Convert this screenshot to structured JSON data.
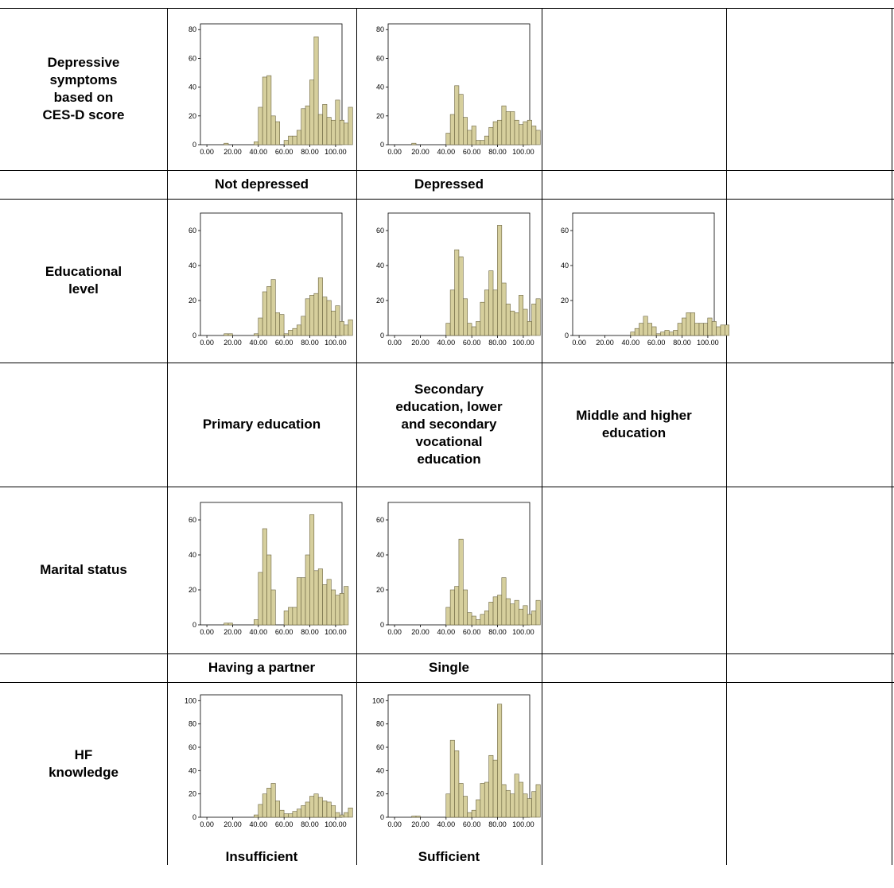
{
  "colors": {
    "bar_fill": "#d6cf9d",
    "bar_stroke": "#6b6440",
    "grid": "#000000"
  },
  "rows": [
    {
      "label": "Depressive\nsymptoms\nbased on\nCES-D score",
      "categories": [
        "Not depressed",
        "Depressed"
      ]
    },
    {
      "label": "Educational\nlevel",
      "categories": [
        "Primary education",
        "Secondary\neducation, lower\nand secondary\nvocational\neducation",
        "Middle and higher\neducation"
      ]
    },
    {
      "label": "Marital status",
      "categories": [
        "Having a partner",
        "Single"
      ]
    },
    {
      "label": "HF\nknowledge",
      "categories": [
        "Insufficient",
        "Sufficient"
      ]
    }
  ],
  "chart_data": [
    {
      "type": "bar",
      "name": "Not depressed",
      "x_ticks": [
        "0.00",
        "20.00",
        "40.00",
        "60.00",
        "80.00",
        "100.00"
      ],
      "xlim": [
        -5,
        105
      ],
      "ylim": [
        0,
        84
      ],
      "y_ticks": [
        0,
        20,
        40,
        60,
        80
      ],
      "bin_start": 0,
      "bin_width": 3.33,
      "values": [
        0,
        0,
        0,
        0,
        1,
        0,
        0,
        0,
        0,
        0,
        0,
        2,
        26,
        47,
        48,
        20,
        16,
        0,
        3,
        6,
        6,
        10,
        25,
        27,
        45,
        75,
        21,
        28,
        19,
        17,
        31,
        17,
        15,
        26
      ]
    },
    {
      "type": "bar",
      "name": "Depressed",
      "x_ticks": [
        "0.00",
        "20.00",
        "40.00",
        "60.00",
        "80.00",
        "100.00"
      ],
      "xlim": [
        -5,
        105
      ],
      "ylim": [
        0,
        84
      ],
      "y_ticks": [
        0,
        20,
        40,
        60,
        80
      ],
      "bin_start": 0,
      "bin_width": 3.33,
      "values": [
        0,
        0,
        0,
        0,
        1,
        0,
        0,
        0,
        0,
        0,
        0,
        0,
        8,
        21,
        41,
        35,
        19,
        10,
        13,
        3,
        3,
        6,
        12,
        16,
        17,
        27,
        23,
        23,
        17,
        14,
        16,
        17,
        13,
        10
      ]
    },
    {
      "type": "bar",
      "name": "Primary education",
      "x_ticks": [
        "0.00",
        "20.00",
        "40.00",
        "60.00",
        "80.00",
        "100.00"
      ],
      "xlim": [
        -5,
        105
      ],
      "ylim": [
        0,
        70
      ],
      "y_ticks": [
        0,
        20,
        40,
        60
      ],
      "bin_start": 0,
      "bin_width": 3.33,
      "values": [
        0,
        0,
        0,
        0,
        1,
        1,
        0,
        0,
        0,
        0,
        0,
        1,
        10,
        25,
        28,
        32,
        13,
        12,
        1,
        3,
        4,
        6,
        11,
        21,
        23,
        24,
        33,
        22,
        20,
        14,
        17,
        8,
        6,
        9
      ]
    },
    {
      "type": "bar",
      "name": "Secondary education, lower and secondary vocational education",
      "x_ticks": [
        "0.00",
        "20.00",
        "40.00",
        "60.00",
        "80.00",
        "100.00"
      ],
      "xlim": [
        -5,
        105
      ],
      "ylim": [
        0,
        70
      ],
      "y_ticks": [
        0,
        20,
        40,
        60
      ],
      "bin_start": 0,
      "bin_width": 3.33,
      "values": [
        0,
        0,
        0,
        0,
        0,
        0,
        0,
        0,
        0,
        0,
        0,
        0,
        7,
        26,
        49,
        45,
        21,
        7,
        5,
        8,
        19,
        26,
        37,
        26,
        63,
        30,
        18,
        14,
        13,
        23,
        15,
        8,
        18,
        21
      ]
    },
    {
      "type": "bar",
      "name": "Middle and higher education",
      "x_ticks": [
        "0.00",
        "20.00",
        "40.00",
        "60.00",
        "80.00",
        "100.00"
      ],
      "xlim": [
        -5,
        105
      ],
      "ylim": [
        0,
        70
      ],
      "y_ticks": [
        0,
        20,
        40,
        60
      ],
      "bin_start": 0,
      "bin_width": 3.33,
      "values": [
        0,
        0,
        0,
        0,
        0,
        0,
        0,
        0,
        0,
        0,
        0,
        0,
        2,
        4,
        7,
        11,
        7,
        5,
        1,
        2,
        3,
        2,
        3,
        7,
        10,
        13,
        13,
        7,
        7,
        7,
        10,
        8,
        5,
        6,
        6
      ]
    },
    {
      "type": "bar",
      "name": "Having a partner",
      "x_ticks": [
        "0.00",
        "20.00",
        "40.00",
        "60.00",
        "80.00",
        "100.00"
      ],
      "xlim": [
        -5,
        105
      ],
      "ylim": [
        0,
        70
      ],
      "y_ticks": [
        0,
        20,
        40,
        60
      ],
      "bin_start": 0,
      "bin_width": 3.33,
      "values": [
        0,
        0,
        0,
        0,
        1,
        1,
        0,
        0,
        0,
        0,
        0,
        3,
        30,
        55,
        40,
        20,
        0,
        0,
        8,
        10,
        10,
        27,
        27,
        40,
        63,
        31,
        32,
        23,
        26,
        20,
        17,
        18,
        22
      ]
    },
    {
      "type": "bar",
      "name": "Single",
      "x_ticks": [
        "0.00",
        "20.00",
        "40.00",
        "60.00",
        "80.00",
        "100.00"
      ],
      "xlim": [
        -5,
        105
      ],
      "ylim": [
        0,
        70
      ],
      "y_ticks": [
        0,
        20,
        40,
        60
      ],
      "bin_start": 0,
      "bin_width": 3.33,
      "values": [
        0,
        0,
        0,
        0,
        0,
        0,
        0,
        0,
        0,
        0,
        0,
        0,
        10,
        20,
        22,
        49,
        20,
        7,
        5,
        3,
        6,
        8,
        13,
        16,
        17,
        27,
        15,
        12,
        14,
        9,
        11,
        6,
        8,
        14
      ]
    },
    {
      "type": "bar",
      "name": "Insufficient",
      "x_ticks": [
        "0.00",
        "20.00",
        "40.00",
        "60.00",
        "80.00",
        "100.00"
      ],
      "xlim": [
        -5,
        105
      ],
      "ylim": [
        0,
        105
      ],
      "y_ticks": [
        0,
        20,
        40,
        60,
        80,
        100
      ],
      "bin_start": 0,
      "bin_width": 3.33,
      "values": [
        0,
        0,
        0,
        0,
        0,
        0,
        0,
        0,
        0,
        0,
        0,
        2,
        11,
        20,
        25,
        29,
        14,
        6,
        3,
        3,
        5,
        7,
        10,
        13,
        18,
        20,
        17,
        14,
        13,
        10,
        4,
        2,
        4,
        8
      ]
    },
    {
      "type": "bar",
      "name": "Sufficient",
      "x_ticks": [
        "0.00",
        "20.00",
        "40.00",
        "60.00",
        "80.00",
        "100.00"
      ],
      "xlim": [
        -5,
        105
      ],
      "ylim": [
        0,
        105
      ],
      "y_ticks": [
        0,
        20,
        40,
        60,
        80,
        100
      ],
      "bin_start": 0,
      "bin_width": 3.33,
      "values": [
        0,
        0,
        0,
        0,
        1,
        1,
        0,
        0,
        0,
        0,
        0,
        0,
        20,
        66,
        57,
        29,
        18,
        4,
        6,
        15,
        29,
        30,
        53,
        49,
        97,
        28,
        23,
        20,
        37,
        30,
        20,
        16,
        22,
        28
      ]
    }
  ]
}
